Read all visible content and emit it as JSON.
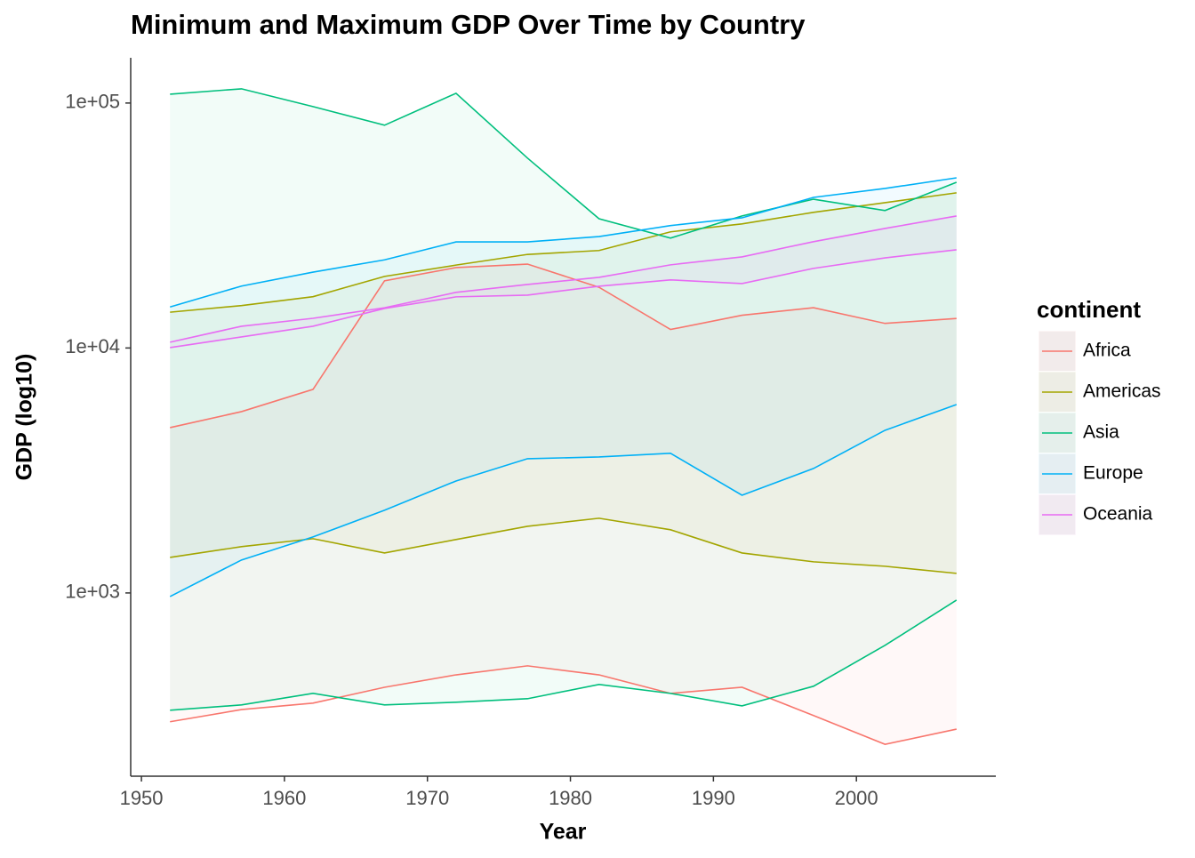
{
  "chart_data": {
    "type": "ribbon",
    "title": "Minimum and Maximum GDP Over Time by Country",
    "x_label": "Year",
    "y_label": "GDP (log10)",
    "legend_title": "continent",
    "legend": "right",
    "log_y": true,
    "x": [
      1952,
      1957,
      1962,
      1967,
      1972,
      1977,
      1982,
      1987,
      1992,
      1997,
      2002,
      2007
    ],
    "xlim": [
      1949.25,
      2009.75
    ],
    "xticks": [
      1950,
      1960,
      1970,
      1980,
      1990,
      2000
    ],
    "ylim": [
      178.6,
      153000
    ],
    "yticks": [
      {
        "value": 1000,
        "label": "1e+03"
      },
      {
        "value": 10000,
        "label": "1e+04"
      },
      {
        "value": 100000,
        "label": "1e+05"
      }
    ],
    "series": [
      {
        "name": "Africa",
        "color": "#F8766D",
        "min": [
          298,
          334,
          355,
          412,
          463,
          504,
          463,
          389,
          412,
          316,
          241,
          278
        ],
        "max": [
          4730,
          5500,
          6780,
          18800,
          21300,
          22000,
          17700,
          11900,
          13600,
          14600,
          12600,
          13200
        ]
      },
      {
        "name": "Americas",
        "color": "#A3A500",
        "min": [
          1396,
          1545,
          1665,
          1456,
          1652,
          1871,
          2018,
          1811,
          1456,
          1340,
          1285,
          1202
        ],
        "max": [
          14000,
          14900,
          16200,
          19600,
          21800,
          24100,
          25000,
          29800,
          32100,
          35800,
          39200,
          43000
        ]
      },
      {
        "name": "Asia",
        "color": "#00BF7D",
        "min": [
          332,
          349,
          389,
          349,
          358,
          370,
          423,
          389,
          346,
          416,
          611,
          935
        ],
        "max": [
          108700,
          114300,
          96700,
          81200,
          109600,
          59600,
          33700,
          28100,
          34600,
          40500,
          36400,
          47500
        ]
      },
      {
        "name": "Europe",
        "color": "#00B0F6",
        "min": [
          967,
          1363,
          1693,
          2175,
          2865,
          3532,
          3590,
          3715,
          2506,
          3222,
          4613,
          5877
        ],
        "max": [
          14700,
          17900,
          20400,
          22900,
          27100,
          27100,
          28500,
          31600,
          34000,
          41200,
          44800,
          49500
        ]
      },
      {
        "name": "Oceania",
        "color": "#E76BF3",
        "min": [
          10040,
          11100,
          12270,
          14500,
          16170,
          16440,
          17870,
          18970,
          18330,
          21130,
          23330,
          25180
        ],
        "max": [
          10560,
          12270,
          13220,
          14600,
          16870,
          18170,
          19430,
          21850,
          23550,
          27170,
          30770,
          34590
        ]
      }
    ]
  }
}
